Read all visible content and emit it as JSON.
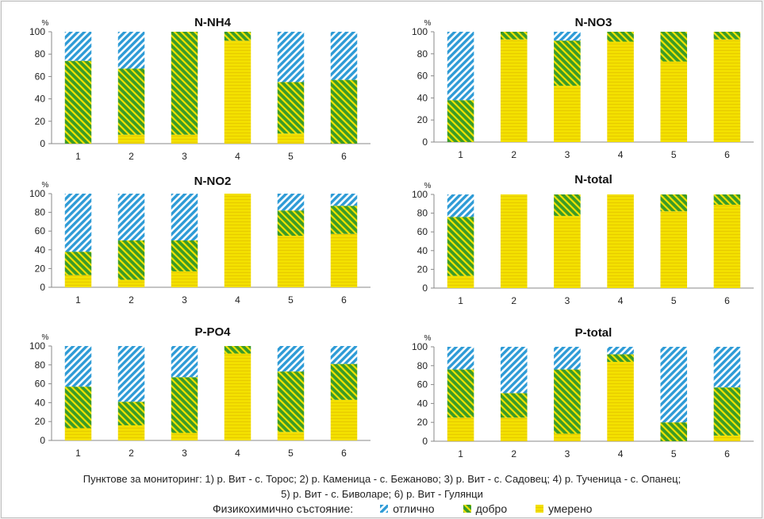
{
  "colors": {
    "otlichno": "#2e9bd6",
    "dobro": "#3a9b28",
    "umereno": "#f3e000"
  },
  "footer": {
    "line1": "Пунктове за мониторинг: 1) р. Вит - с. Торос; 2) р. Каменица - с. Бежаново; 3) р. Вит - с. Садовец; 4) р. Тученица - с. Опанец;",
    "line2": "5) р. Вит - с. Биволаре;  6) р. Вит - Гулянци",
    "legend_label": "Физикохимично  състояние:",
    "legend": [
      {
        "name": "отлично",
        "color": "#2e9bd6",
        "pattern": "blue"
      },
      {
        "name": "добро",
        "color": "#3a9b28",
        "pattern": "green"
      },
      {
        "name": "умерено",
        "color": "#f3e000",
        "pattern": "yellow"
      }
    ]
  },
  "chart_data": [
    {
      "type": "bar",
      "stacked": true,
      "title": "N-NH4",
      "unit": "%",
      "categories": [
        "1",
        "2",
        "3",
        "4",
        "5",
        "6"
      ],
      "ylim": [
        0,
        100
      ],
      "yticks": [
        0,
        20,
        40,
        60,
        80,
        100
      ],
      "series": [
        {
          "name": "умерено",
          "values": [
            0,
            8,
            8,
            92,
            9,
            0
          ]
        },
        {
          "name": "добро",
          "values": [
            74,
            59,
            92,
            8,
            46,
            57
          ]
        },
        {
          "name": "отлично",
          "values": [
            26,
            33,
            0,
            0,
            45,
            43
          ]
        }
      ]
    },
    {
      "type": "bar",
      "stacked": true,
      "title": "N-NO3",
      "unit": "%",
      "categories": [
        "1",
        "2",
        "3",
        "4",
        "5",
        "6"
      ],
      "ylim": [
        0,
        100
      ],
      "yticks": [
        0,
        20,
        40,
        60,
        80,
        100
      ],
      "series": [
        {
          "name": "умерено",
          "values": [
            0,
            93,
            51,
            91,
            73,
            93
          ]
        },
        {
          "name": "добро",
          "values": [
            38,
            7,
            41,
            9,
            27,
            7
          ]
        },
        {
          "name": "отлично",
          "values": [
            62,
            0,
            8,
            0,
            0,
            0
          ]
        }
      ]
    },
    {
      "type": "bar",
      "stacked": true,
      "title": "N-NO2",
      "unit": "%",
      "categories": [
        "1",
        "2",
        "3",
        "4",
        "5",
        "6"
      ],
      "ylim": [
        0,
        100
      ],
      "yticks": [
        0,
        20,
        40,
        60,
        80,
        100
      ],
      "series": [
        {
          "name": "умерено",
          "values": [
            13,
            8,
            17,
            100,
            55,
            57
          ]
        },
        {
          "name": "добро",
          "values": [
            25,
            42,
            33,
            0,
            27,
            30
          ]
        },
        {
          "name": "отлично",
          "values": [
            62,
            50,
            50,
            0,
            18,
            13
          ]
        }
      ]
    },
    {
      "type": "bar",
      "stacked": true,
      "title": "N-total",
      "unit": "%",
      "categories": [
        "1",
        "2",
        "3",
        "4",
        "5",
        "6"
      ],
      "ylim": [
        0,
        100
      ],
      "yticks": [
        0,
        20,
        40,
        60,
        80,
        100
      ],
      "series": [
        {
          "name": "умерено",
          "values": [
            13,
            100,
            77,
            100,
            82,
            89
          ]
        },
        {
          "name": "добро",
          "values": [
            63,
            0,
            23,
            0,
            18,
            11
          ]
        },
        {
          "name": "отлично",
          "values": [
            24,
            0,
            0,
            0,
            0,
            0
          ]
        }
      ]
    },
    {
      "type": "bar",
      "stacked": true,
      "title": "P-PO4",
      "unit": "%",
      "categories": [
        "1",
        "2",
        "3",
        "4",
        "5",
        "6"
      ],
      "ylim": [
        0,
        100
      ],
      "yticks": [
        0,
        20,
        40,
        60,
        80,
        100
      ],
      "series": [
        {
          "name": "умерено",
          "values": [
            13,
            16,
            8,
            92,
            9,
            43
          ]
        },
        {
          "name": "добро",
          "values": [
            44,
            25,
            59,
            8,
            64,
            38
          ]
        },
        {
          "name": "отлично",
          "values": [
            43,
            59,
            33,
            0,
            27,
            19
          ]
        }
      ]
    },
    {
      "type": "bar",
      "stacked": true,
      "title": "P-total",
      "unit": "%",
      "categories": [
        "1",
        "2",
        "3",
        "4",
        "5",
        "6"
      ],
      "ylim": [
        0,
        100
      ],
      "yticks": [
        0,
        20,
        40,
        60,
        80,
        100
      ],
      "series": [
        {
          "name": "умерено",
          "values": [
            25,
            25,
            8,
            84,
            0,
            6
          ]
        },
        {
          "name": "добро",
          "values": [
            51,
            26,
            68,
            8,
            20,
            51
          ]
        },
        {
          "name": "отлично",
          "values": [
            24,
            49,
            24,
            8,
            80,
            43
          ]
        }
      ]
    }
  ]
}
